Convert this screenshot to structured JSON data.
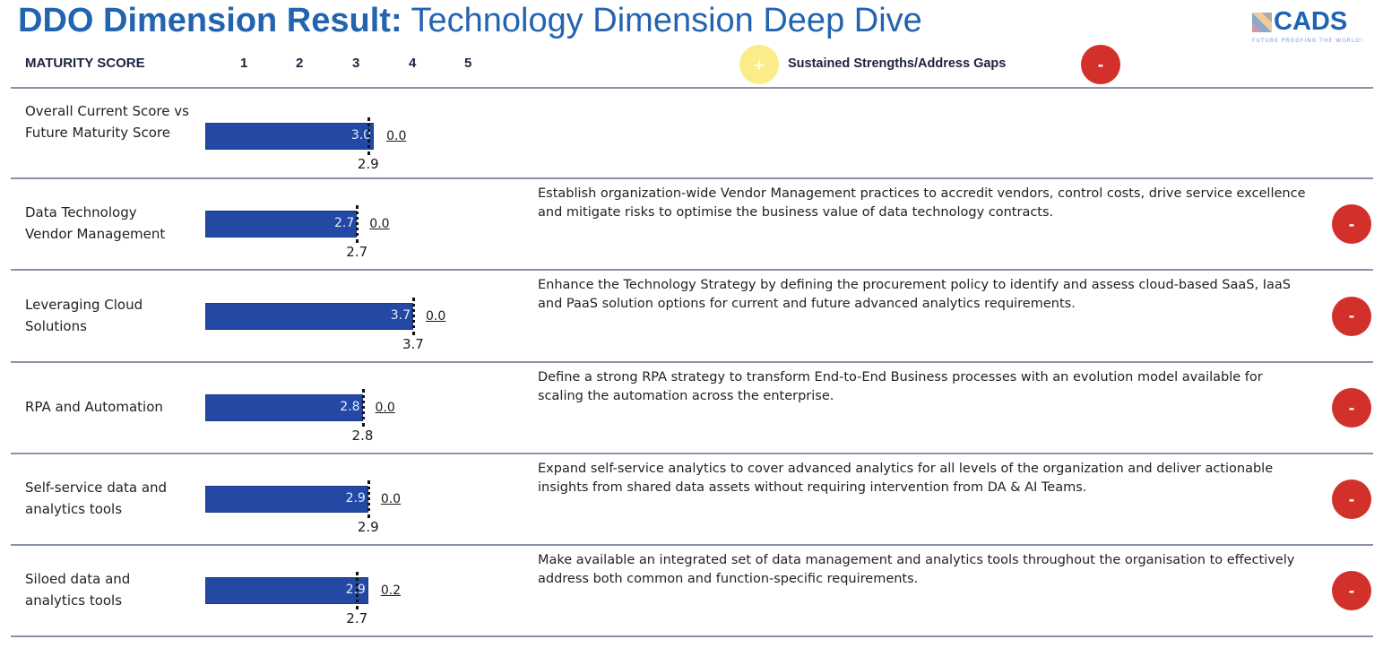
{
  "title": {
    "bold": "DDO Dimension Result:",
    "rest": " Technology Dimension Deep Dive"
  },
  "logo": {
    "name": "CADS",
    "tagline": "FUTURE PROOFING THE WORLD!"
  },
  "header": {
    "maturity_label": "MATURITY SCORE",
    "scale": [
      "1",
      "2",
      "3",
      "4",
      "5"
    ],
    "legend_label": "Sustained Strengths/Address Gaps",
    "plus": "+",
    "minus": "-"
  },
  "colors": {
    "bar": "#2449a5",
    "title": "#2364b0",
    "gap_icon": "#d2302a",
    "strength_icon": "#fbec8a"
  },
  "rows": [
    {
      "label": "Overall Current Score vs Future Maturity Score",
      "current": 3.0,
      "current_label": "3.0",
      "future": 2.9,
      "future_label": "2.9",
      "gap": "0.0",
      "description": "",
      "icon": ""
    },
    {
      "label": "Data Technology Vendor Management",
      "current": 2.7,
      "current_label": "2.7",
      "future": 2.7,
      "future_label": "2.7",
      "gap": "0.0",
      "description": "Establish organization-wide Vendor Management practices to accredit vendors, control costs, drive service excellence and mitigate risks to optimise the business value of data technology contracts.",
      "icon": "-"
    },
    {
      "label": "Leveraging Cloud Solutions",
      "current": 3.7,
      "current_label": "3.7",
      "future": 3.7,
      "future_label": "3.7",
      "gap": "0.0",
      "description": "Enhance the Technology Strategy by defining the procurement policy to identify and assess cloud-based SaaS, IaaS and PaaS solution options for current and future advanced analytics requirements.",
      "icon": "-"
    },
    {
      "label": "RPA and Automation",
      "current": 2.8,
      "current_label": "2.8",
      "future": 2.8,
      "future_label": "2.8",
      "gap": "0.0",
      "description": "Define a strong RPA strategy to transform End-to-End Business processes with an evolution model available for scaling the automation across the enterprise.",
      "icon": "-"
    },
    {
      "label": "Self-service data and analytics tools",
      "current": 2.9,
      "current_label": "2.9",
      "future": 2.9,
      "future_label": "2.9",
      "gap": "0.0",
      "description": "Expand self-service analytics to cover advanced analytics for all levels of the organization and deliver actionable insights from shared data assets without requiring intervention from DA & AI Teams.",
      "icon": "-"
    },
    {
      "label": "Siloed data and analytics tools",
      "current": 2.9,
      "current_label": "2.9",
      "future": 2.7,
      "future_label": "2.7",
      "gap": "0.2",
      "description": "Make available an integrated set of data management and analytics tools throughout the organisation to effectively address both common and function-specific requirements.",
      "icon": "-"
    }
  ]
}
